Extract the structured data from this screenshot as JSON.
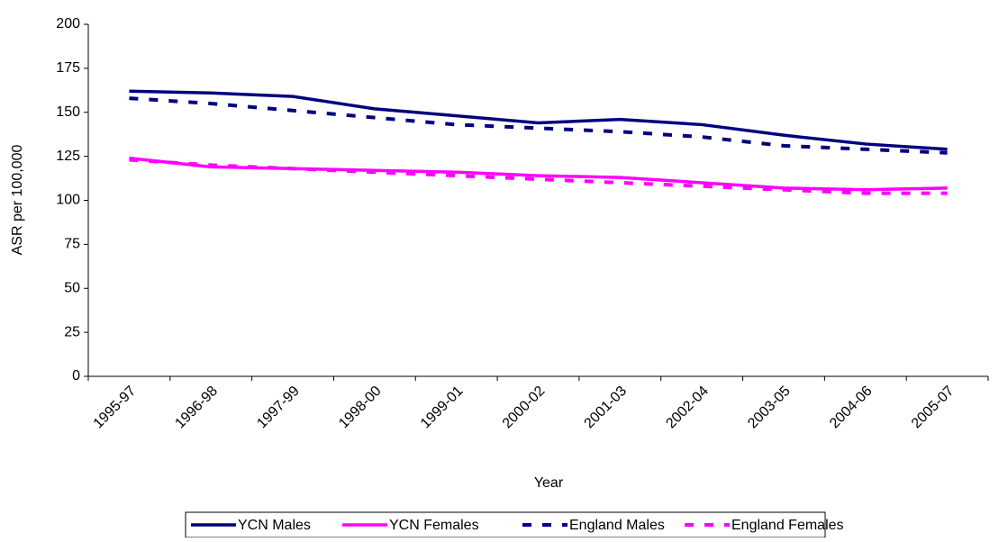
{
  "chart_data": {
    "type": "line",
    "x_label": "Year",
    "y_label": "ASR per 100,000",
    "categories": [
      "1995-97",
      "1996-98",
      "1997-99",
      "1998-00",
      "1999-01",
      "2000-02",
      "2001-03",
      "2002-04",
      "2003-05",
      "2004-06",
      "2005-07"
    ],
    "series": [
      {
        "name": "YCN Males",
        "color": "#000080",
        "dashed": false,
        "values": [
          162,
          161,
          159,
          152,
          148,
          144,
          146,
          143,
          137,
          132,
          129
        ]
      },
      {
        "name": "YCN Females",
        "color": "#ff00ff",
        "dashed": false,
        "values": [
          124,
          119,
          118,
          117,
          116,
          114,
          113,
          110,
          107,
          106,
          107
        ]
      },
      {
        "name": "England Males",
        "color": "#000080",
        "dashed": true,
        "values": [
          158,
          155,
          151,
          147,
          143,
          141,
          139,
          136,
          131,
          129,
          127
        ]
      },
      {
        "name": "England Females",
        "color": "#ff00ff",
        "dashed": true,
        "values": [
          123,
          120,
          118,
          116,
          114,
          112,
          110,
          108,
          106,
          104,
          104
        ]
      }
    ],
    "ylim": [
      0,
      200
    ],
    "yticks": [
      0,
      25,
      50,
      75,
      100,
      125,
      150,
      175,
      200
    ],
    "grid": false
  }
}
